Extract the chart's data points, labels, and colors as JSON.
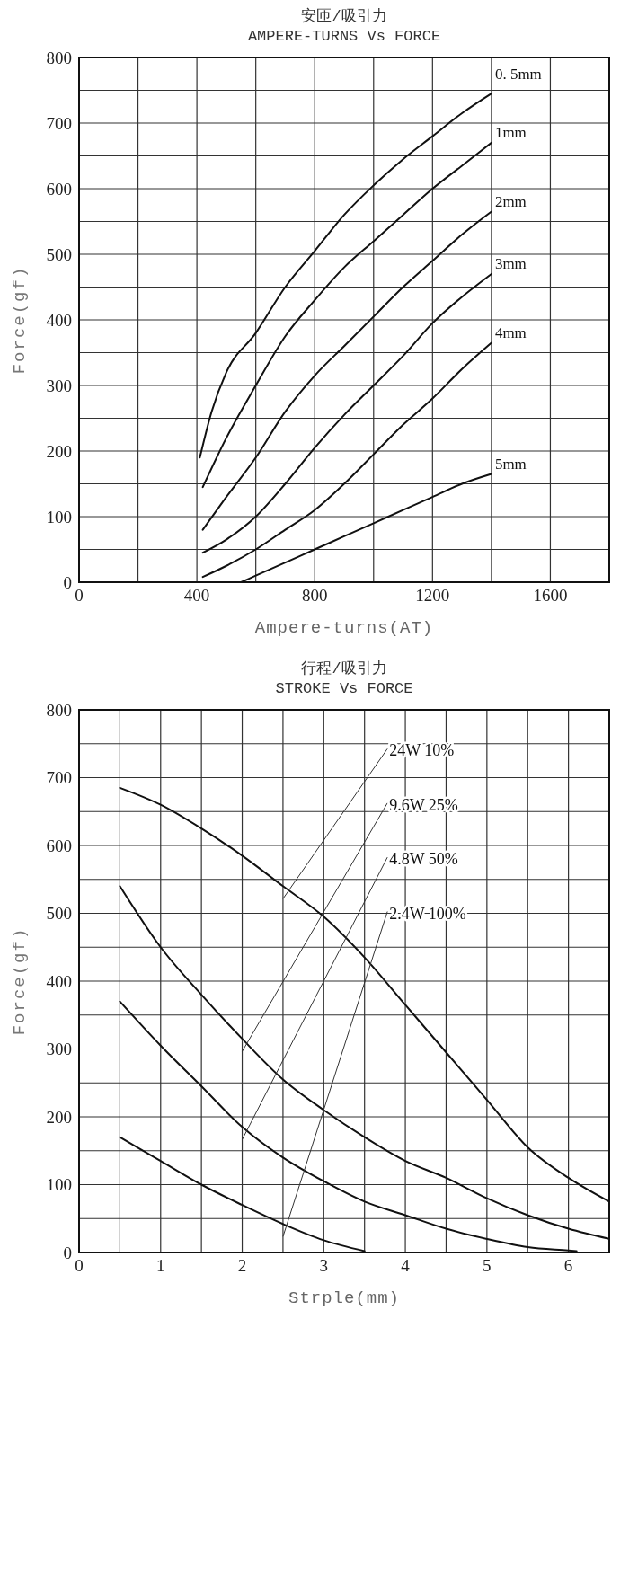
{
  "chart_data": [
    {
      "type": "line",
      "title": "安匝/吸引力",
      "subtitle": "AMPERE-TURNS Vs FORCE",
      "xlabel": "Ampere-turns(AT)",
      "ylabel": "Force(gf)",
      "xlim": [
        0,
        1800
      ],
      "ylim": [
        0,
        800
      ],
      "xticks": [
        0,
        {
          "value": 200,
          "label": null
        },
        400,
        {
          "value": 600,
          "label": null
        },
        800,
        {
          "value": 1000,
          "label": null
        },
        1200,
        {
          "value": 1400,
          "label": null
        },
        1600,
        {
          "value": 1800,
          "label": null
        }
      ],
      "yticks": [
        0,
        {
          "value": 50,
          "label": null
        },
        100,
        {
          "value": 150,
          "label": null
        },
        200,
        {
          "value": 250,
          "label": null
        },
        300,
        {
          "value": 350,
          "label": null
        },
        400,
        {
          "value": 450,
          "label": null
        },
        500,
        {
          "value": 550,
          "label": null
        },
        600,
        {
          "value": 650,
          "label": null
        },
        700,
        {
          "value": 750,
          "label": null
        },
        800
      ],
      "grid": true,
      "series": [
        {
          "name": "0. 5mm",
          "color": "#111111",
          "x": [
            410,
            450,
            500,
            600,
            700,
            800,
            900,
            1000,
            1100,
            1200,
            1300,
            1400
          ],
          "values": [
            190,
            260,
            320,
            380,
            450,
            505,
            560,
            605,
            645,
            680,
            715,
            745
          ]
        },
        {
          "name": "1mm",
          "color": "#111111",
          "x": [
            420,
            500,
            600,
            700,
            800,
            900,
            1000,
            1100,
            1200,
            1300,
            1400
          ],
          "values": [
            145,
            220,
            300,
            375,
            430,
            480,
            520,
            560,
            600,
            635,
            670
          ]
        },
        {
          "name": "2mm",
          "color": "#111111",
          "x": [
            420,
            500,
            600,
            700,
            800,
            900,
            1000,
            1100,
            1200,
            1300,
            1400
          ],
          "values": [
            80,
            130,
            190,
            260,
            315,
            360,
            405,
            450,
            490,
            530,
            565
          ]
        },
        {
          "name": "3mm",
          "color": "#111111",
          "x": [
            420,
            500,
            600,
            700,
            800,
            900,
            1000,
            1100,
            1200,
            1300,
            1400
          ],
          "values": [
            45,
            65,
            100,
            150,
            205,
            255,
            300,
            345,
            395,
            435,
            470
          ]
        },
        {
          "name": "4mm",
          "color": "#111111",
          "x": [
            420,
            500,
            600,
            700,
            800,
            900,
            1000,
            1100,
            1200,
            1300,
            1400
          ],
          "values": [
            8,
            25,
            50,
            80,
            110,
            150,
            195,
            240,
            280,
            325,
            365
          ]
        },
        {
          "name": "5mm",
          "color": "#111111",
          "x": [
            550,
            600,
            700,
            800,
            900,
            1000,
            1100,
            1200,
            1300,
            1400
          ],
          "values": [
            0,
            10,
            30,
            50,
            70,
            90,
            110,
            130,
            150,
            165
          ]
        }
      ]
    },
    {
      "type": "line",
      "title": "行程/吸引力",
      "subtitle": "STROKE Vs FORCE",
      "xlabel": "Strple(mm)",
      "ylabel": "Force(gf)",
      "xlim": [
        0,
        6.5
      ],
      "ylim": [
        0,
        800
      ],
      "xticks": [
        0,
        {
          "value": 0.5,
          "label": null
        },
        1,
        {
          "value": 1.5,
          "label": null
        },
        2,
        {
          "value": 2.5,
          "label": null
        },
        3,
        {
          "value": 3.5,
          "label": null
        },
        4,
        {
          "value": 4.5,
          "label": null
        },
        5,
        {
          "value": 5.5,
          "label": null
        },
        6,
        {
          "value": 6.5,
          "label": null
        }
      ],
      "yticks": [
        0,
        {
          "value": 50,
          "label": null
        },
        100,
        {
          "value": 150,
          "label": null
        },
        200,
        {
          "value": 250,
          "label": null
        },
        300,
        {
          "value": 350,
          "label": null
        },
        400,
        {
          "value": 450,
          "label": null
        },
        500,
        {
          "value": 550,
          "label": null
        },
        600,
        {
          "value": 650,
          "label": null
        },
        700,
        {
          "value": 750,
          "label": null
        },
        800
      ],
      "grid": true,
      "series": [
        {
          "name": "24W 10%",
          "color": "#111111",
          "x": [
            0.5,
            1,
            1.5,
            2,
            2.5,
            3,
            3.5,
            4,
            4.5,
            5,
            5.5,
            6,
            6.5
          ],
          "values": [
            685,
            660,
            625,
            585,
            540,
            495,
            435,
            365,
            295,
            225,
            155,
            110,
            75
          ]
        },
        {
          "name": "9.6W 25%",
          "color": "#111111",
          "x": [
            0.5,
            1,
            1.5,
            2,
            2.5,
            3,
            3.5,
            4,
            4.5,
            5,
            5.5,
            6,
            6.5
          ],
          "values": [
            540,
            450,
            380,
            315,
            255,
            210,
            170,
            135,
            110,
            80,
            55,
            35,
            20
          ]
        },
        {
          "name": "4.8W 50%",
          "color": "#111111",
          "x": [
            0.5,
            1,
            1.5,
            2,
            2.5,
            3,
            3.5,
            4,
            4.5,
            5,
            5.5,
            6,
            6.1
          ],
          "values": [
            370,
            305,
            245,
            185,
            140,
            105,
            75,
            55,
            35,
            20,
            8,
            3,
            2
          ]
        },
        {
          "name": "2.4W 100%",
          "color": "#111111",
          "x": [
            0.5,
            1,
            1.5,
            2,
            2.5,
            3,
            3.5
          ],
          "values": [
            170,
            135,
            100,
            70,
            42,
            18,
            2
          ]
        }
      ]
    }
  ]
}
